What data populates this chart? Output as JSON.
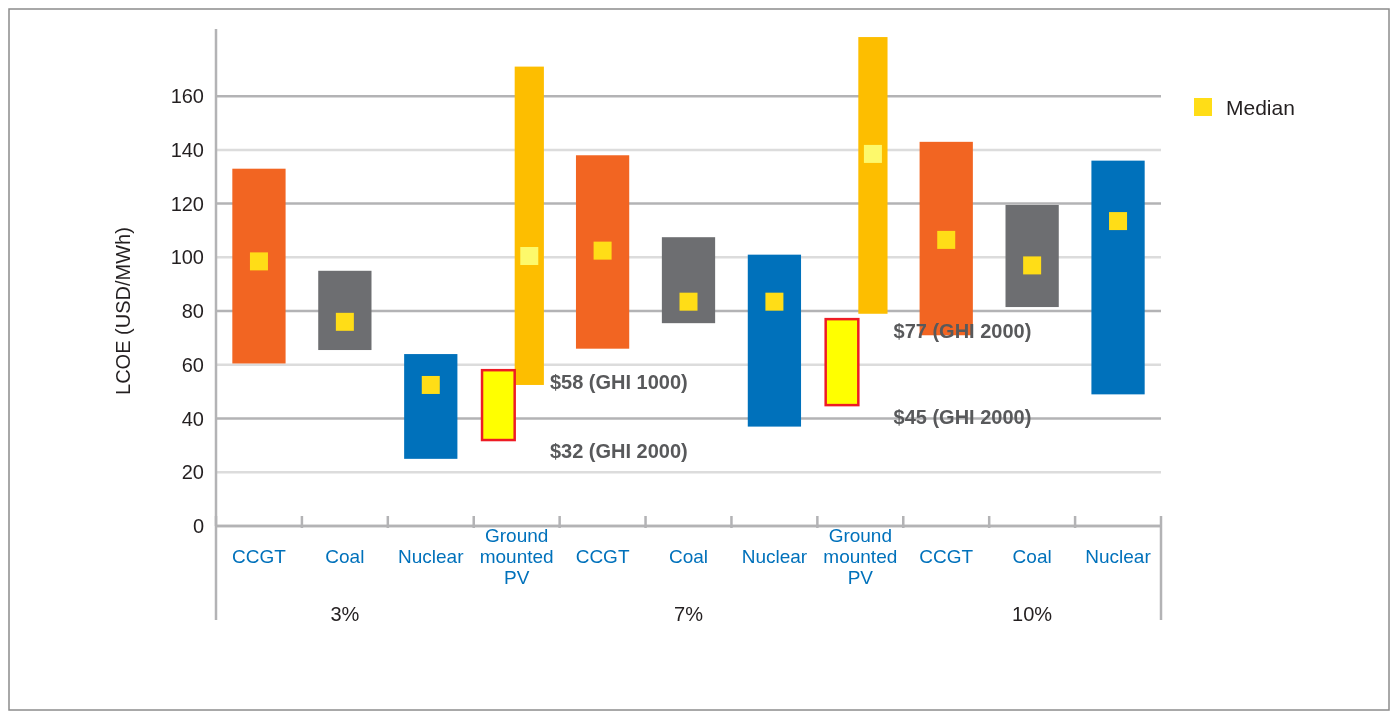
{
  "chart_data": {
    "type": "bar",
    "ylabel": "LCOE (USD/MWh)",
    "categories": [
      "CCGT",
      "Coal",
      "Nuclear",
      "Ground mounted PV",
      "CCGT",
      "Coal",
      "Nuclear",
      "Ground mounted PV",
      "CCGT",
      "Coal",
      "Nuclear"
    ],
    "series": [
      {
        "base": [
          60.5,
          65.5,
          25,
          52.5,
          66,
          75.5,
          37,
          79,
          71,
          81.5,
          49
        ],
        "values": [
          72.5,
          29.5,
          39,
          118.5,
          72,
          32,
          64,
          103,
          72,
          38,
          87
        ],
        "colors": [
          "#f26522",
          "#6d6e71",
          "#0071bb",
          "#fdbe00",
          "#f26522",
          "#6d6e71",
          "#0071bb",
          "#fdbe00",
          "#f26522",
          "#6d6e71",
          "#0071bb"
        ]
      },
      {
        "base": [
          null,
          null,
          null,
          32,
          null,
          null,
          null,
          45,
          null,
          null,
          null
        ],
        "values": [
          null,
          null,
          null,
          26,
          null,
          null,
          null,
          32,
          null,
          null,
          null
        ],
        "color": "#ffff00"
      },
      {
        "type": "scatter",
        "name": "Median",
        "color": "#ffdd17",
        "colors": [
          "#ffdd17",
          "#ffdd17",
          "#ffdd17",
          "#fdf96b",
          "#ffdd17",
          "#ffdd17",
          "#ffdd17",
          "#fdf96b",
          "#ffdd17",
          "#ffdd17",
          "#ffdd17"
        ],
        "marker": "square",
        "values": [
          98.5,
          76,
          52.5,
          100.5,
          102.5,
          83.5,
          83.5,
          138.5,
          106.5,
          97,
          113.5
        ]
      }
    ],
    "ylim": [
      0,
      185
    ],
    "yticks": [
      0,
      20,
      40,
      60,
      80,
      100,
      120,
      140,
      160
    ],
    "grid": "y",
    "legend": "top right",
    "annotations": [
      "3%",
      "7%",
      "10%",
      "$58 (GHI 1000)",
      "$32 (GHI 2000)",
      "$77 (GHI 2000)",
      "$45 (GHI 2000)"
    ]
  }
}
